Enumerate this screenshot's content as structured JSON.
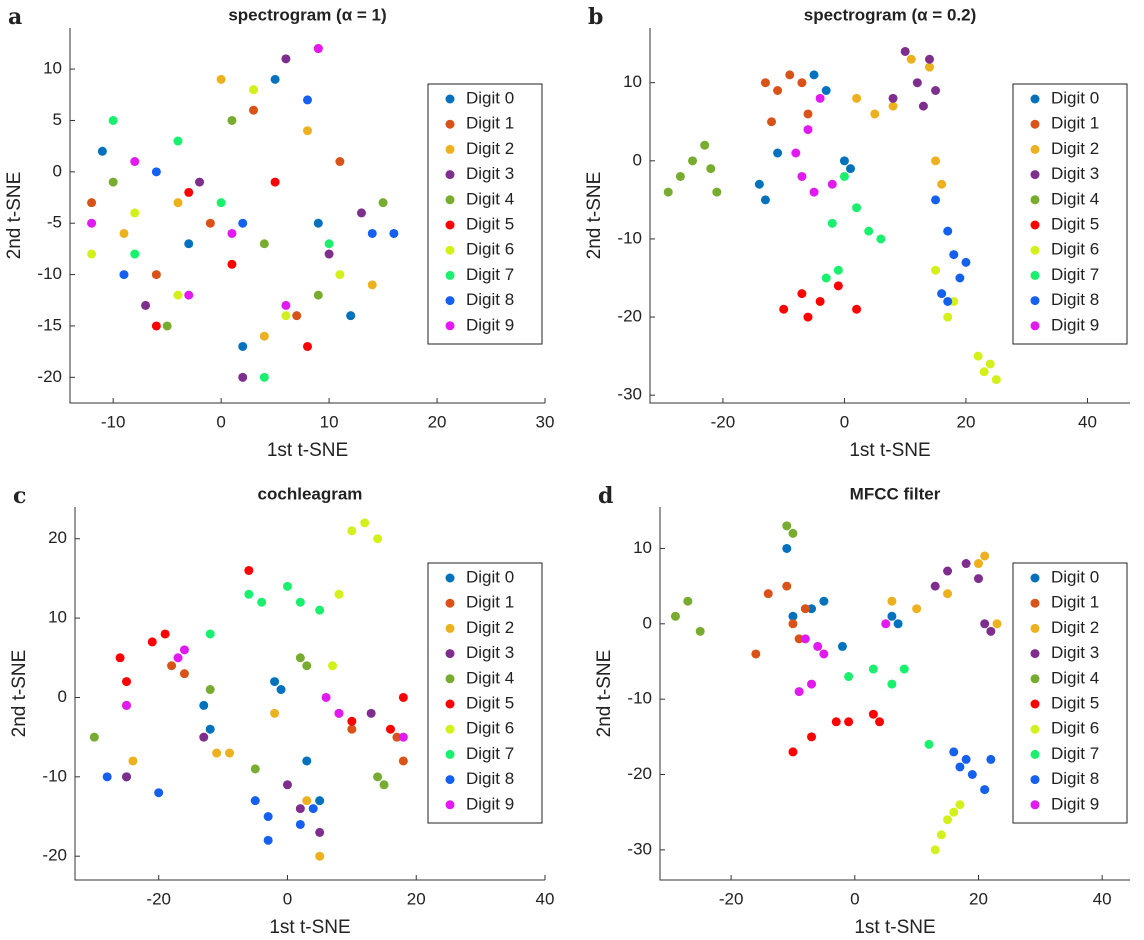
{
  "chart_data": [
    {
      "type": "scatter",
      "panel_label": "a",
      "title": "spectrogram (α = 1)",
      "xlabel": "1st t-SNE",
      "ylabel": "2nd t-SNE",
      "xlim": [
        -14,
        30
      ],
      "ylim": [
        -22.5,
        14
      ],
      "xticks": [
        -10,
        0,
        10,
        20,
        30
      ],
      "yticks": [
        -20,
        -15,
        -10,
        -5,
        0,
        5,
        10
      ],
      "legend": "right",
      "series": [
        {
          "name": "Digit 0",
          "color": "#0072BD",
          "x": [
            -11,
            -3,
            5,
            9,
            12,
            2
          ],
          "y": [
            2,
            -7,
            9,
            -5,
            -14,
            -17
          ]
        },
        {
          "name": "Digit 1",
          "color": "#D95319",
          "x": [
            -12,
            -6,
            3,
            7,
            -1,
            11
          ],
          "y": [
            -3,
            -10,
            6,
            -14,
            -5,
            1
          ]
        },
        {
          "name": "Digit 2",
          "color": "#EDB120",
          "x": [
            -9,
            0,
            4,
            8,
            14,
            -4
          ],
          "y": [
            -6,
            9,
            -16,
            4,
            -11,
            -3
          ]
        },
        {
          "name": "Digit 3",
          "color": "#7E2F8E",
          "x": [
            -7,
            2,
            6,
            10,
            -2,
            13
          ],
          "y": [
            -13,
            -20,
            11,
            -8,
            -1,
            -4
          ]
        },
        {
          "name": "Digit 4",
          "color": "#77AC30",
          "x": [
            -10,
            -5,
            1,
            9,
            15,
            4
          ],
          "y": [
            -1,
            -15,
            5,
            -12,
            -3,
            -7
          ]
        },
        {
          "name": "Digit 5",
          "color": "#FF0000",
          "x": [
            -3,
            1,
            5,
            9,
            -6,
            8
          ],
          "y": [
            -2,
            -9,
            -1,
            12,
            -15,
            -17
          ]
        },
        {
          "name": "Digit 6",
          "color": "#D4F01A",
          "x": [
            -8,
            -12,
            3,
            11,
            -4,
            6
          ],
          "y": [
            -4,
            -8,
            8,
            -10,
            -12,
            -14
          ]
        },
        {
          "name": "Digit 7",
          "color": "#1AF06E",
          "x": [
            -10,
            -4,
            0,
            4,
            10,
            -8
          ],
          "y": [
            5,
            3,
            -3,
            -20,
            -7,
            -8
          ]
        },
        {
          "name": "Digit 8",
          "color": "#1560EE",
          "x": [
            -9,
            -6,
            2,
            8,
            14,
            16
          ],
          "y": [
            -10,
            0,
            -5,
            7,
            -6,
            -6
          ]
        },
        {
          "name": "Digit 9",
          "color": "#E01AF0",
          "x": [
            -12,
            -3,
            1,
            6,
            9,
            -8
          ],
          "y": [
            -5,
            -12,
            -6,
            -13,
            12,
            1
          ]
        }
      ]
    },
    {
      "type": "scatter",
      "panel_label": "b",
      "title": "spectrogram (α = 0.2)",
      "xlabel": "1st t-SNE",
      "ylabel": "2nd t-SNE",
      "xlim": [
        -32,
        47
      ],
      "ylim": [
        -31,
        17
      ],
      "xticks": [
        -20,
        0,
        20,
        40
      ],
      "yticks": [
        -30,
        -20,
        -10,
        0,
        10
      ],
      "legend": "right",
      "series": [
        {
          "name": "Digit 0",
          "color": "#0072BD",
          "x": [
            -14,
            -13,
            -11,
            -5,
            -3,
            0,
            1
          ],
          "y": [
            -3,
            -5,
            1,
            11,
            9,
            0,
            -1
          ]
        },
        {
          "name": "Digit 1",
          "color": "#D95319",
          "x": [
            -13,
            -11,
            -9,
            -7,
            -12,
            -6
          ],
          "y": [
            10,
            9,
            11,
            10,
            5,
            6
          ]
        },
        {
          "name": "Digit 2",
          "color": "#EDB120",
          "x": [
            2,
            5,
            8,
            11,
            14,
            15,
            16
          ],
          "y": [
            8,
            6,
            7,
            13,
            12,
            0,
            -3
          ]
        },
        {
          "name": "Digit 3",
          "color": "#7E2F8E",
          "x": [
            8,
            10,
            12,
            13,
            14,
            15
          ],
          "y": [
            8,
            14,
            10,
            7,
            13,
            9
          ]
        },
        {
          "name": "Digit 4",
          "color": "#77AC30",
          "x": [
            -29,
            -27,
            -25,
            -23,
            -21,
            -22
          ],
          "y": [
            -4,
            -2,
            0,
            2,
            -4,
            -1
          ]
        },
        {
          "name": "Digit 5",
          "color": "#FF0000",
          "x": [
            -10,
            -7,
            -4,
            -1,
            2,
            -6
          ],
          "y": [
            -19,
            -17,
            -18,
            -16,
            -19,
            -20
          ]
        },
        {
          "name": "Digit 6",
          "color": "#D4F01A",
          "x": [
            15,
            16,
            17,
            18,
            22,
            23,
            24,
            25
          ],
          "y": [
            -14,
            -17,
            -20,
            -18,
            -25,
            -27,
            -26,
            -28
          ]
        },
        {
          "name": "Digit 7",
          "color": "#1AF06E",
          "x": [
            -2,
            0,
            2,
            4,
            6,
            -3,
            -1
          ],
          "y": [
            -8,
            -2,
            -6,
            -9,
            -10,
            -15,
            -14
          ]
        },
        {
          "name": "Digit 8",
          "color": "#1560EE",
          "x": [
            15,
            17,
            18,
            19,
            20,
            17,
            16
          ],
          "y": [
            -5,
            -9,
            -12,
            -15,
            -13,
            -18,
            -17
          ]
        },
        {
          "name": "Digit 9",
          "color": "#E01AF0",
          "x": [
            -8,
            -6,
            -4,
            -7,
            -5,
            -2
          ],
          "y": [
            1,
            4,
            8,
            -2,
            -4,
            -3
          ]
        }
      ]
    },
    {
      "type": "scatter",
      "panel_label": "c",
      "title": "cochleagram",
      "xlabel": "1st t-SNE",
      "ylabel": "2nd t-SNE",
      "xlim": [
        -33,
        40
      ],
      "ylim": [
        -23,
        24
      ],
      "xticks": [
        -20,
        0,
        20,
        40
      ],
      "yticks": [
        -20,
        -10,
        0,
        10,
        20
      ],
      "legend": "right",
      "series": [
        {
          "name": "Digit 0",
          "color": "#0072BD",
          "x": [
            -25,
            -13,
            -12,
            -2,
            -1,
            5,
            3
          ],
          "y": [
            -10,
            -1,
            -4,
            2,
            1,
            -13,
            -8
          ]
        },
        {
          "name": "Digit 1",
          "color": "#D95319",
          "x": [
            -25,
            -18,
            -16,
            8,
            10,
            17,
            18
          ],
          "y": [
            -1,
            4,
            3,
            -2,
            -4,
            -5,
            -8
          ]
        },
        {
          "name": "Digit 2",
          "color": "#EDB120",
          "x": [
            -24,
            -11,
            -9,
            -2,
            3,
            5
          ],
          "y": [
            -8,
            -7,
            -7,
            -2,
            -13,
            -20
          ]
        },
        {
          "name": "Digit 3",
          "color": "#7E2F8E",
          "x": [
            -25,
            -13,
            0,
            2,
            5,
            13
          ],
          "y": [
            -10,
            -5,
            -11,
            -14,
            -17,
            -2
          ]
        },
        {
          "name": "Digit 4",
          "color": "#77AC30",
          "x": [
            -30,
            -12,
            -5,
            2,
            3,
            14,
            15
          ],
          "y": [
            -5,
            1,
            -9,
            5,
            4,
            -10,
            -11
          ]
        },
        {
          "name": "Digit 5",
          "color": "#FF0000",
          "x": [
            -26,
            -25,
            -21,
            -19,
            -6,
            10,
            16,
            18
          ],
          "y": [
            5,
            2,
            7,
            8,
            16,
            -3,
            -4,
            0
          ]
        },
        {
          "name": "Digit 6",
          "color": "#D4F01A",
          "x": [
            10,
            12,
            14,
            8,
            7
          ],
          "y": [
            21,
            22,
            20,
            13,
            4
          ]
        },
        {
          "name": "Digit 7",
          "color": "#1AF06E",
          "x": [
            -6,
            -4,
            0,
            2,
            5,
            -12
          ],
          "y": [
            13,
            12,
            14,
            12,
            11,
            8
          ]
        },
        {
          "name": "Digit 8",
          "color": "#1560EE",
          "x": [
            -28,
            -20,
            -5,
            -3,
            -3,
            4,
            2
          ],
          "y": [
            -10,
            -12,
            -13,
            -15,
            -18,
            -14,
            -16
          ]
        },
        {
          "name": "Digit 9",
          "color": "#E01AF0",
          "x": [
            -25,
            -17,
            -16,
            6,
            8,
            18
          ],
          "y": [
            -1,
            5,
            6,
            0,
            -2,
            -5
          ]
        }
      ]
    },
    {
      "type": "scatter",
      "panel_label": "d",
      "title": "MFCC filter",
      "xlabel": "1st t-SNE",
      "ylabel": "2nd t-SNE",
      "xlim": [
        -31.5,
        44.5
      ],
      "ylim": [
        -34,
        15.5
      ],
      "xticks": [
        -20,
        0,
        20,
        40
      ],
      "yticks": [
        -30,
        -20,
        -10,
        0,
        10
      ],
      "legend": "right",
      "series": [
        {
          "name": "Digit 0",
          "color": "#0072BD",
          "x": [
            -11,
            -10,
            -7,
            -5,
            -2,
            7,
            6
          ],
          "y": [
            10,
            1,
            2,
            3,
            -3,
            0,
            1
          ]
        },
        {
          "name": "Digit 1",
          "color": "#D95319",
          "x": [
            -14,
            -11,
            -8,
            -10,
            -16,
            -9
          ],
          "y": [
            4,
            5,
            2,
            0,
            -4,
            -2
          ]
        },
        {
          "name": "Digit 2",
          "color": "#EDB120",
          "x": [
            6,
            10,
            15,
            20,
            21,
            23
          ],
          "y": [
            3,
            2,
            4,
            8,
            9,
            0
          ]
        },
        {
          "name": "Digit 3",
          "color": "#7E2F8E",
          "x": [
            13,
            15,
            18,
            20,
            22,
            21
          ],
          "y": [
            5,
            7,
            8,
            6,
            -1,
            0
          ]
        },
        {
          "name": "Digit 4",
          "color": "#77AC30",
          "x": [
            -29,
            -27,
            -25,
            -10,
            -11
          ],
          "y": [
            1,
            3,
            -1,
            12,
            13
          ]
        },
        {
          "name": "Digit 5",
          "color": "#FF0000",
          "x": [
            -10,
            -7,
            -3,
            -1,
            3,
            4
          ],
          "y": [
            -17,
            -15,
            -13,
            -13,
            -12,
            -13
          ]
        },
        {
          "name": "Digit 6",
          "color": "#D4F01A",
          "x": [
            13,
            14,
            15,
            16,
            17,
            21
          ],
          "y": [
            -30,
            -28,
            -26,
            -25,
            -24,
            -22
          ]
        },
        {
          "name": "Digit 7",
          "color": "#1AF06E",
          "x": [
            -1,
            3,
            6,
            8,
            12
          ],
          "y": [
            -7,
            -6,
            -8,
            -6,
            -16
          ]
        },
        {
          "name": "Digit 8",
          "color": "#1560EE",
          "x": [
            16,
            17,
            18,
            19,
            21,
            22
          ],
          "y": [
            -17,
            -19,
            -18,
            -20,
            -22,
            -18
          ]
        },
        {
          "name": "Digit 9",
          "color": "#E01AF0",
          "x": [
            -8,
            -5,
            -7,
            -9,
            -6,
            5
          ],
          "y": [
            -2,
            -4,
            -8,
            -9,
            -3,
            0
          ]
        }
      ]
    }
  ]
}
